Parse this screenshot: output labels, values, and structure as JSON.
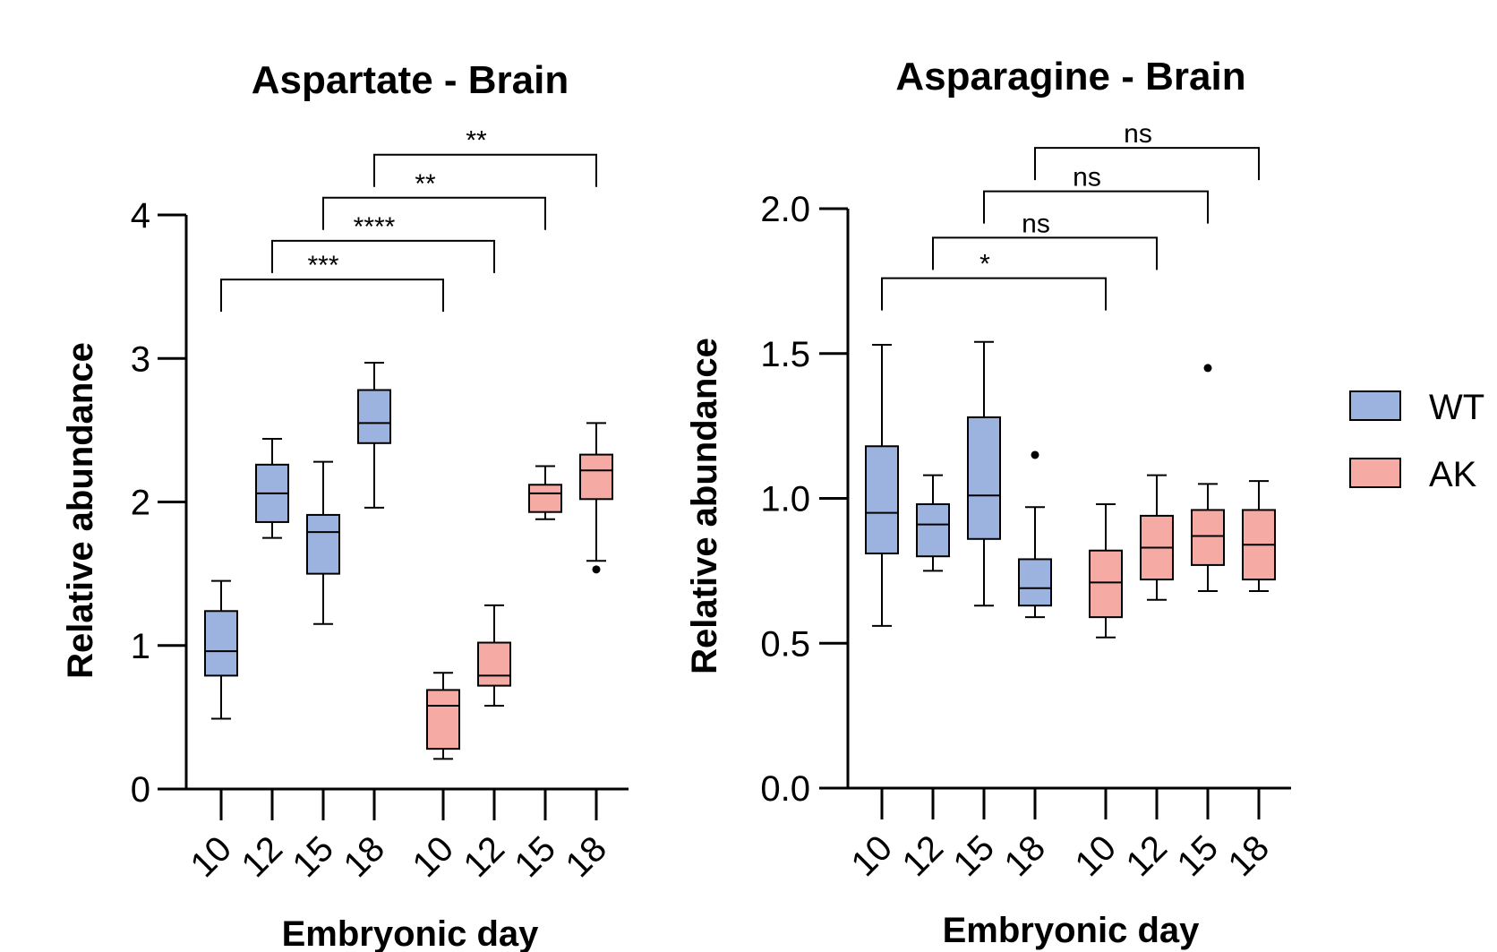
{
  "legend": [
    {
      "label": "WT",
      "color": "#9db3df"
    },
    {
      "label": "AK",
      "color": "#f6aaa4"
    }
  ],
  "chart_data": [
    {
      "type": "box",
      "title": "Aspartate - Brain",
      "xlabel": "Embryonic day",
      "ylabel": "Relative abundance",
      "ylim": [
        0,
        4
      ],
      "yticks": [
        {
          "value": 0,
          "label": "0"
        },
        {
          "value": 1,
          "label": "1"
        },
        {
          "value": 2,
          "label": "2"
        },
        {
          "value": 3,
          "label": "3"
        },
        {
          "value": 4,
          "label": "4"
        }
      ],
      "categories": [
        "10",
        "12",
        "15",
        "18",
        "10",
        "12",
        "15",
        "18"
      ],
      "groups": [
        "WT",
        "WT",
        "WT",
        "WT",
        "AK",
        "AK",
        "AK",
        "AK"
      ],
      "boxes": [
        {
          "min": 0.49,
          "q1": 0.79,
          "median": 0.96,
          "q3": 1.24,
          "max": 1.45,
          "outliers": []
        },
        {
          "min": 1.75,
          "q1": 1.86,
          "median": 2.06,
          "q3": 2.26,
          "max": 2.44,
          "outliers": []
        },
        {
          "min": 1.15,
          "q1": 1.5,
          "median": 1.79,
          "q3": 1.91,
          "max": 2.28,
          "outliers": []
        },
        {
          "min": 1.96,
          "q1": 2.41,
          "median": 2.55,
          "q3": 2.78,
          "max": 2.97,
          "outliers": []
        },
        {
          "min": 0.21,
          "q1": 0.28,
          "median": 0.58,
          "q3": 0.69,
          "max": 0.81,
          "outliers": []
        },
        {
          "min": 0.58,
          "q1": 0.72,
          "median": 0.79,
          "q3": 1.02,
          "max": 1.28,
          "outliers": []
        },
        {
          "min": 1.88,
          "q1": 1.93,
          "median": 2.06,
          "q3": 2.12,
          "max": 2.25,
          "outliers": []
        },
        {
          "min": 1.59,
          "q1": 2.02,
          "median": 2.22,
          "q3": 2.33,
          "max": 2.55,
          "outliers": [
            1.53
          ]
        }
      ],
      "comparisons": [
        {
          "from": 0,
          "to": 4,
          "label": "***",
          "y": 3.55
        },
        {
          "from": 1,
          "to": 5,
          "label": "****",
          "y": 3.82
        },
        {
          "from": 2,
          "to": 6,
          "label": "**",
          "y": 4.12
        },
        {
          "from": 3,
          "to": 7,
          "label": "**",
          "y": 4.42
        }
      ]
    },
    {
      "type": "box",
      "title": "Asparagine - Brain",
      "xlabel": "Embryonic day",
      "ylabel": "Relative abundance",
      "ylim": [
        0,
        2.0
      ],
      "yticks": [
        {
          "value": 0,
          "label": "0.0"
        },
        {
          "value": 0.5,
          "label": "0.5"
        },
        {
          "value": 1.0,
          "label": "1.0"
        },
        {
          "value": 1.5,
          "label": "1.5"
        },
        {
          "value": 2.0,
          "label": "2.0"
        }
      ],
      "categories": [
        "10",
        "12",
        "15",
        "18",
        "10",
        "12",
        "15",
        "18"
      ],
      "groups": [
        "WT",
        "WT",
        "WT",
        "WT",
        "AK",
        "AK",
        "AK",
        "AK"
      ],
      "boxes": [
        {
          "min": 0.56,
          "q1": 0.81,
          "median": 0.95,
          "q3": 1.18,
          "max": 1.53,
          "outliers": []
        },
        {
          "min": 0.75,
          "q1": 0.8,
          "median": 0.91,
          "q3": 0.98,
          "max": 1.08,
          "outliers": []
        },
        {
          "min": 0.63,
          "q1": 0.86,
          "median": 1.01,
          "q3": 1.28,
          "max": 1.54,
          "outliers": []
        },
        {
          "min": 0.59,
          "q1": 0.63,
          "median": 0.69,
          "q3": 0.79,
          "max": 0.97,
          "outliers": [
            1.15
          ]
        },
        {
          "min": 0.52,
          "q1": 0.59,
          "median": 0.71,
          "q3": 0.82,
          "max": 0.98,
          "outliers": []
        },
        {
          "min": 0.65,
          "q1": 0.72,
          "median": 0.83,
          "q3": 0.94,
          "max": 1.08,
          "outliers": []
        },
        {
          "min": 0.68,
          "q1": 0.77,
          "median": 0.87,
          "q3": 0.96,
          "max": 1.05,
          "outliers": [
            1.45
          ]
        },
        {
          "min": 0.68,
          "q1": 0.72,
          "median": 0.84,
          "q3": 0.96,
          "max": 1.06,
          "outliers": []
        }
      ],
      "comparisons": [
        {
          "from": 0,
          "to": 4,
          "label": "*",
          "y": 1.76
        },
        {
          "from": 1,
          "to": 5,
          "label": "ns",
          "y": 1.9
        },
        {
          "from": 2,
          "to": 6,
          "label": "ns",
          "y": 2.06
        },
        {
          "from": 3,
          "to": 7,
          "label": "ns",
          "y": 2.21
        }
      ]
    }
  ]
}
